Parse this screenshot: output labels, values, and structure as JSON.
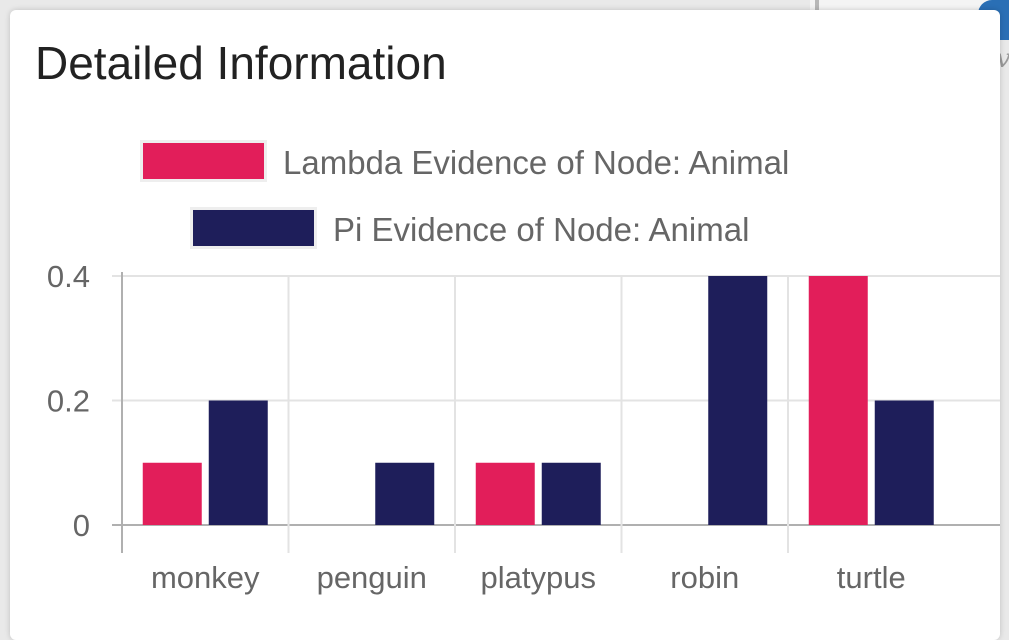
{
  "card": {
    "title": "Detailed Information"
  },
  "colors": {
    "lambda": "#e21e5a",
    "pi": "#1e1e5a",
    "grid": "#e3e3e3",
    "axis": "#b0b0b0"
  },
  "chart_data": {
    "type": "bar",
    "categories": [
      "monkey",
      "penguin",
      "platypus",
      "robin",
      "turtle"
    ],
    "series": [
      {
        "name": "Lambda Evidence of Node: Animal",
        "color": "#e21e5a",
        "values": [
          0.1,
          0,
          0.1,
          0,
          0.4
        ]
      },
      {
        "name": "Pi Evidence of Node: Animal",
        "color": "#1e1e5a",
        "values": [
          0.2,
          0.1,
          0.1,
          0.4,
          0.2
        ]
      }
    ],
    "y_ticks": [
      "0",
      "0.2",
      "0.4"
    ],
    "y_tick_values": [
      0,
      0.2,
      0.4
    ],
    "ylim": [
      0,
      0.4
    ],
    "legend_position": "top",
    "grid": true,
    "title": "",
    "xlabel": "",
    "ylabel": ""
  }
}
